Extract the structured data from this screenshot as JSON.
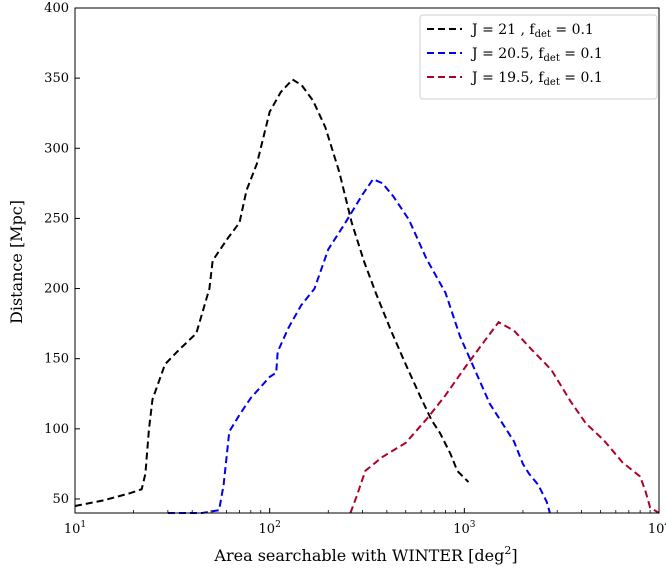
{
  "chart_data": {
    "type": "line",
    "xscale": "log",
    "xlabel": "Area searchable with WINTER [deg",
    "xlabel_sup": "2",
    "xlabel_end": "]",
    "ylabel": "Distance [Mpc]",
    "xlim": [
      10,
      10000
    ],
    "ylim": [
      40,
      400
    ],
    "xticks": [
      {
        "value": 10,
        "base": "10",
        "exp": "1"
      },
      {
        "value": 100,
        "base": "10",
        "exp": "2"
      },
      {
        "value": 1000,
        "base": "10",
        "exp": "3"
      },
      {
        "value": 10000,
        "base": "10",
        "exp": "4"
      }
    ],
    "yticks": [
      "50",
      "100",
      "150",
      "200",
      "250",
      "300",
      "350",
      "400"
    ],
    "legend_position": "top-right",
    "series": [
      {
        "legend_main": "J = 21 , f",
        "legend_sub": "det",
        "legend_end": " = 0.1",
        "color": "#000000",
        "points": [
          [
            10,
            45
          ],
          [
            14,
            49
          ],
          [
            19,
            54
          ],
          [
            22,
            57
          ],
          [
            23,
            68
          ],
          [
            24,
            100
          ],
          [
            25,
            121
          ],
          [
            29,
            146
          ],
          [
            34,
            156
          ],
          [
            42,
            168
          ],
          [
            49,
            200
          ],
          [
            51,
            220
          ],
          [
            61,
            236
          ],
          [
            70,
            247
          ],
          [
            76,
            270
          ],
          [
            86,
            289
          ],
          [
            100,
            326
          ],
          [
            114,
            340
          ],
          [
            131,
            349
          ],
          [
            146,
            345
          ],
          [
            167,
            334
          ],
          [
            193,
            315
          ],
          [
            228,
            283
          ],
          [
            264,
            247
          ],
          [
            306,
            219
          ],
          [
            353,
            196
          ],
          [
            420,
            170
          ],
          [
            500,
            146
          ],
          [
            590,
            124
          ],
          [
            680,
            106
          ],
          [
            750,
            97
          ],
          [
            850,
            82
          ],
          [
            920,
            70
          ],
          [
            1050,
            62
          ]
        ]
      },
      {
        "legend_main": "J = 20.5, f",
        "legend_sub": "det",
        "legend_end": " = 0.1",
        "color": "#0000ee",
        "points": [
          [
            30,
            40
          ],
          [
            45,
            40
          ],
          [
            55,
            42
          ],
          [
            58,
            60
          ],
          [
            62,
            98
          ],
          [
            70,
            110
          ],
          [
            80,
            122
          ],
          [
            100,
            137
          ],
          [
            108,
            140
          ],
          [
            110,
            155
          ],
          [
            125,
            172
          ],
          [
            145,
            188
          ],
          [
            170,
            200
          ],
          [
            200,
            228
          ],
          [
            240,
            245
          ],
          [
            300,
            267
          ],
          [
            340,
            278
          ],
          [
            380,
            275
          ],
          [
            430,
            266
          ],
          [
            520,
            249
          ],
          [
            640,
            221
          ],
          [
            800,
            197
          ],
          [
            950,
            166
          ],
          [
            1150,
            140
          ],
          [
            1350,
            118
          ],
          [
            1550,
            105
          ],
          [
            1800,
            91
          ],
          [
            2000,
            75
          ],
          [
            2150,
            68
          ],
          [
            2400,
            60
          ],
          [
            2650,
            48
          ],
          [
            2750,
            40
          ]
        ]
      },
      {
        "legend_main": "J = 19.5, f",
        "legend_sub": "det",
        "legend_end": " = 0.1",
        "color": "#b0002a",
        "points": [
          [
            260,
            40
          ],
          [
            280,
            52
          ],
          [
            310,
            70
          ],
          [
            380,
            80
          ],
          [
            500,
            90
          ],
          [
            650,
            108
          ],
          [
            800,
            124
          ],
          [
            1000,
            143
          ],
          [
            1200,
            158
          ],
          [
            1500,
            176
          ],
          [
            1800,
            170
          ],
          [
            2200,
            157
          ],
          [
            2800,
            142
          ],
          [
            3500,
            120
          ],
          [
            4200,
            104
          ],
          [
            5200,
            92
          ],
          [
            6500,
            76
          ],
          [
            8000,
            66
          ],
          [
            8500,
            56
          ],
          [
            9000,
            44
          ],
          [
            10000,
            40
          ]
        ]
      }
    ]
  }
}
